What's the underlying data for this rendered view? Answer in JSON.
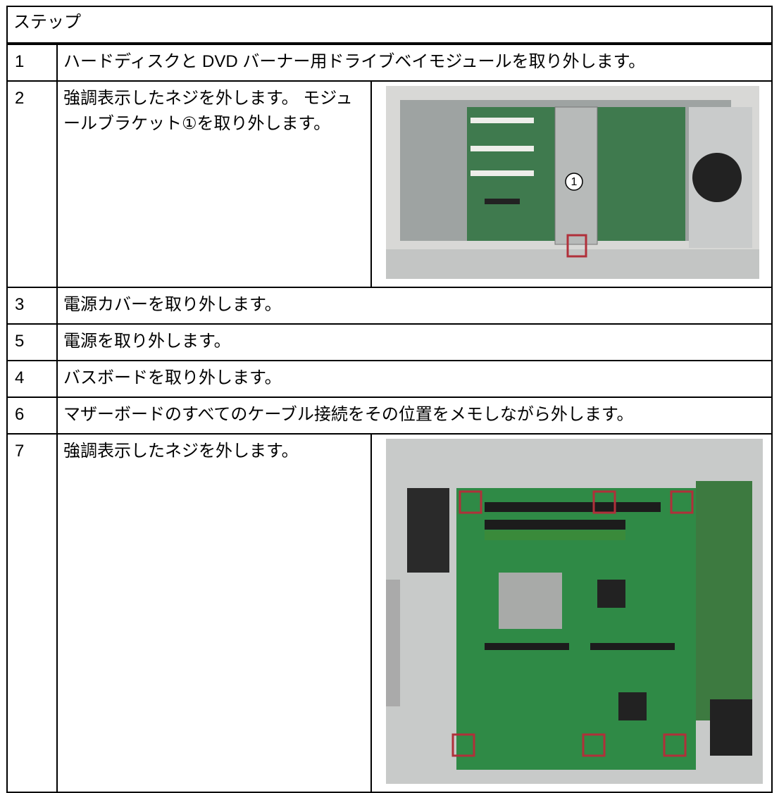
{
  "header": {
    "title": "ステップ"
  },
  "steps": [
    {
      "number": "1",
      "text": "ハードディスクと DVD バーナー用ドライブベイモジュールを取り外します。"
    },
    {
      "number": "2",
      "text": "強調表示したネジを外します。 モジュールブラケット①を取り外します。",
      "image_callout": "1"
    },
    {
      "number": "3",
      "text": "電源カバーを取り外します。"
    },
    {
      "number": "5",
      "text": "電源を取り外します。"
    },
    {
      "number": "4",
      "text": "バスボードを取り外します。"
    },
    {
      "number": "6",
      "text": "マザーボードのすべてのケーブル接続をその位置をメモしながら外します。"
    },
    {
      "number": "7",
      "text": "強調表示したネジを外します。"
    }
  ]
}
